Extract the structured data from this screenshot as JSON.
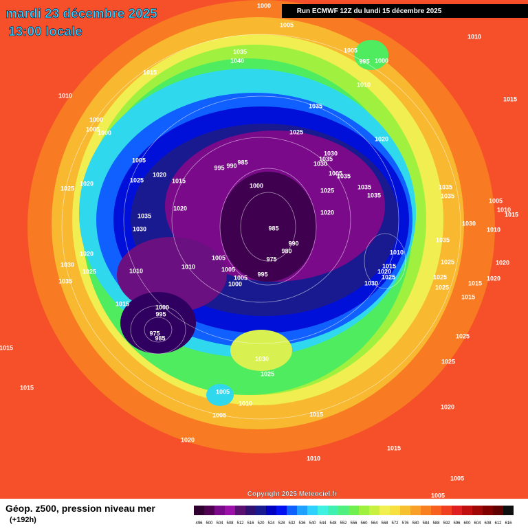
{
  "header": {
    "title": "mardi 23 décembre 2025",
    "subtitle": "13:00 locale",
    "run": "Run ECMWF 12Z du lundi 15 décembre 2025"
  },
  "copyright": "Copyright 2025 Meteociel.fr",
  "footer": {
    "label": "Géop. z500, pression niveau mer",
    "lead": "(+192h)"
  },
  "legend": {
    "values": [
      496,
      500,
      504,
      508,
      512,
      516,
      520,
      524,
      528,
      532,
      536,
      540,
      544,
      548,
      552,
      556,
      560,
      564,
      568,
      572,
      576,
      580,
      584,
      588,
      592,
      596,
      600,
      604,
      608,
      612,
      616
    ],
    "colors": [
      "#300030",
      "#500050",
      "#7a0a8a",
      "#9a10a8",
      "#5a1070",
      "#301070",
      "#1a1a90",
      "#0000c0",
      "#0010f0",
      "#1060ff",
      "#20a0ff",
      "#30d0ff",
      "#40f0e0",
      "#40f0b0",
      "#50f080",
      "#70f050",
      "#a0f040",
      "#c8f040",
      "#f0f050",
      "#f8e040",
      "#f8c030",
      "#f8a028",
      "#f88020",
      "#f86020",
      "#f04020",
      "#e02020",
      "#c01010",
      "#a00808",
      "#800000",
      "#600000",
      "#101010"
    ]
  },
  "isobar_labels": [
    "1000",
    "1005",
    "1010",
    "1035",
    "1040",
    "1005",
    "995",
    "1000",
    "1015",
    "1010",
    "1010",
    "1015",
    "1035",
    "1000",
    "1005",
    "1000",
    "1025",
    "1020",
    "1005",
    "1030",
    "1035",
    "1030",
    "995",
    "990",
    "985",
    "1020",
    "1025",
    "1015",
    "1005",
    "1035",
    "1025",
    "1020",
    "1000",
    "1025",
    "1035",
    "1035",
    "1035",
    "1035",
    "1005",
    "1010",
    "1015",
    "1020",
    "1035",
    "1020",
    "1030",
    "1010",
    "1030",
    "985",
    "1035",
    "990",
    "980",
    "1010",
    "1020",
    "1005",
    "975",
    "1025",
    "1020",
    "1030",
    "1025",
    "1010",
    "1010",
    "1005",
    "1015",
    "1020",
    "995",
    "1005",
    "1025",
    "1025",
    "1015",
    "1020",
    "1000",
    "1030",
    "1035",
    "1025",
    "1015",
    "1015",
    "1000",
    "995",
    "975",
    "985",
    "1025",
    "1015",
    "1030",
    "1025",
    "1025",
    "1005",
    "1015",
    "1010",
    "1020",
    "1005",
    "1015",
    "1020",
    "1015",
    "1010",
    "1005",
    "1005"
  ]
}
